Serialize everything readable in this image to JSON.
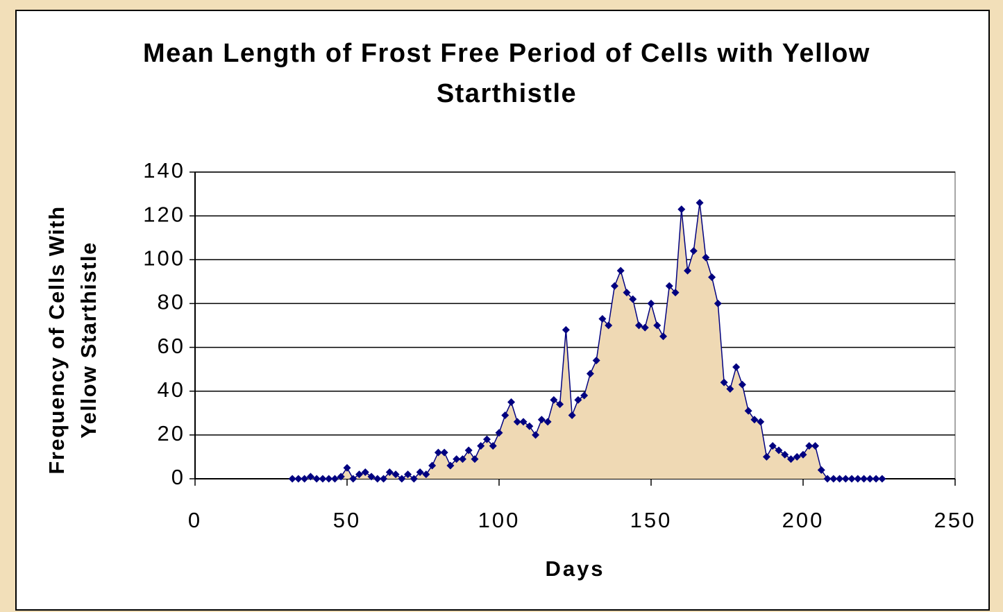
{
  "chart_data": {
    "type": "area",
    "title": "Mean Length of Frost Free Period of Cells with Yellow Starthistle",
    "xlabel": "Days",
    "ylabel": "Frequency of Cells With Yellow Starthistle",
    "x": [
      32,
      34,
      36,
      38,
      40,
      42,
      44,
      46,
      48,
      50,
      52,
      54,
      56,
      58,
      60,
      62,
      64,
      66,
      68,
      70,
      72,
      74,
      76,
      78,
      80,
      82,
      84,
      86,
      88,
      90,
      92,
      94,
      96,
      98,
      100,
      102,
      104,
      106,
      108,
      110,
      112,
      114,
      116,
      118,
      120,
      122,
      124,
      126,
      128,
      130,
      132,
      134,
      136,
      138,
      140,
      142,
      144,
      146,
      148,
      150,
      152,
      154,
      156,
      158,
      160,
      162,
      164,
      166,
      168,
      170,
      172,
      174,
      176,
      178,
      180,
      182,
      184,
      186,
      188,
      190,
      192,
      194,
      196,
      198,
      200,
      202,
      204,
      206,
      208,
      210,
      212,
      214,
      216,
      218,
      220,
      222,
      224,
      226
    ],
    "series": [
      {
        "name": "Frequency",
        "color": "#000080",
        "fill": "#efd9b4",
        "values": [
          0,
          0,
          0,
          1,
          0,
          0,
          0,
          0,
          1,
          5,
          0,
          2,
          3,
          1,
          0,
          0,
          3,
          2,
          0,
          2,
          0,
          3,
          2,
          6,
          12,
          12,
          6,
          9,
          9,
          13,
          9,
          15,
          18,
          15,
          21,
          29,
          35,
          26,
          26,
          24,
          20,
          27,
          26,
          36,
          34,
          68,
          29,
          36,
          38,
          48,
          54,
          73,
          70,
          88,
          95,
          85,
          82,
          70,
          69,
          80,
          70,
          65,
          88,
          85,
          123,
          95,
          104,
          126,
          101,
          92,
          80,
          44,
          41,
          51,
          43,
          31,
          27,
          26,
          10,
          15,
          13,
          11,
          9,
          10,
          11,
          15,
          15,
          4,
          0,
          0,
          0,
          0,
          0,
          0,
          0,
          0,
          0,
          0
        ]
      }
    ],
    "xlim": [
      0,
      250
    ],
    "xticks": [
      0,
      50,
      100,
      150,
      200,
      250
    ],
    "ylim": [
      0,
      140
    ],
    "yticks": [
      0,
      20,
      40,
      60,
      80,
      100,
      120,
      140
    ],
    "grid": true
  }
}
